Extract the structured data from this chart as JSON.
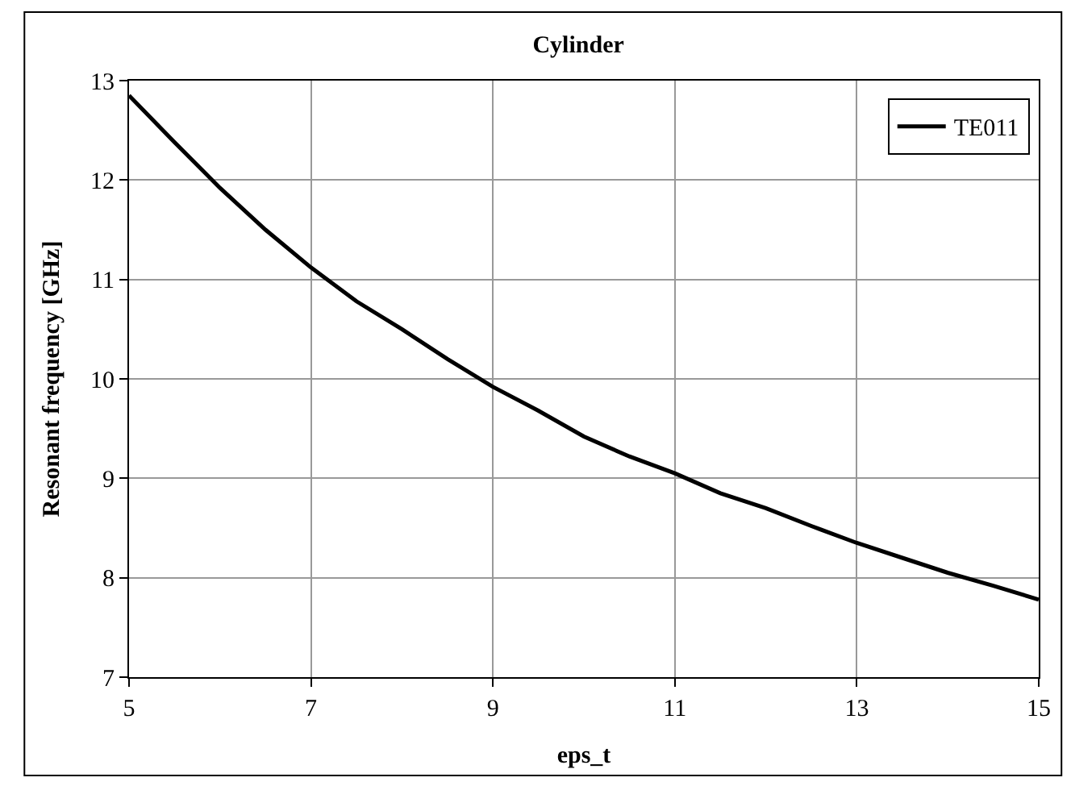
{
  "chart_data": {
    "type": "line",
    "title": "Cylinder",
    "xlabel": "eps_t",
    "ylabel": "Resonant frequency [GHz]",
    "x": [
      5,
      5.5,
      6,
      6.5,
      7,
      7.5,
      8,
      8.5,
      9,
      9.5,
      10,
      10.5,
      11,
      11.5,
      12,
      12.5,
      13,
      13.5,
      14,
      14.5,
      15
    ],
    "series": [
      {
        "name": "TE011",
        "color": "#000000",
        "values": [
          12.85,
          12.38,
          11.92,
          11.5,
          11.12,
          10.78,
          10.5,
          10.2,
          9.92,
          9.68,
          9.42,
          9.22,
          9.05,
          8.85,
          8.7,
          8.52,
          8.35,
          8.2,
          8.05,
          7.92,
          7.78
        ]
      }
    ],
    "xlim": [
      5,
      15
    ],
    "xticks": [
      5,
      7,
      9,
      11,
      13,
      15
    ],
    "ylim": [
      7,
      13
    ],
    "yticks": [
      7,
      8,
      9,
      10,
      11,
      12,
      13
    ],
    "grid": true,
    "legend": "top right",
    "marker": "none",
    "line_style": "solid"
  }
}
